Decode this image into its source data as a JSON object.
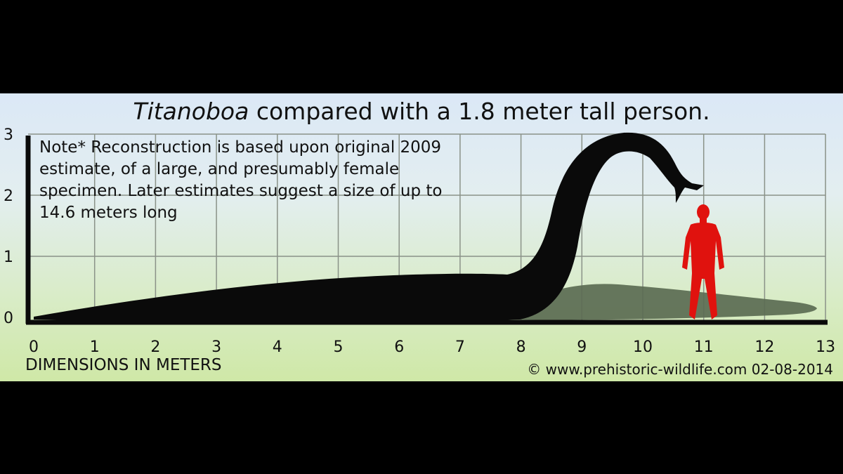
{
  "title": {
    "italic": "Titanoboa",
    "rest": " compared with a 1.8 meter tall person."
  },
  "note": [
    "Note* Reconstruction is based upon original 2009",
    "estimate, of a large, and presumably female",
    "specimen. Later estimates suggest a size of up to",
    "14.6 meters long"
  ],
  "axes": {
    "x_ticks": [
      "0",
      "1",
      "2",
      "3",
      "4",
      "5",
      "6",
      "7",
      "8",
      "9",
      "10",
      "11",
      "12",
      "13"
    ],
    "y_ticks": [
      "0",
      "1",
      "2",
      "3"
    ],
    "x_range": [
      0,
      13
    ],
    "y_range": [
      0,
      3
    ],
    "grid": true,
    "xlabel": "DIMENSIONS IN METERS"
  },
  "credit": "© www.prehistoric-wildlife.com 02-08-2014",
  "colors": {
    "snake": "#0a0a0a",
    "snake_shadow": "#5b6b53",
    "person": "#e0120e",
    "grid": "#8a9288"
  },
  "subjects": {
    "snake_height_m": 3,
    "person_height_m": 1.8
  }
}
